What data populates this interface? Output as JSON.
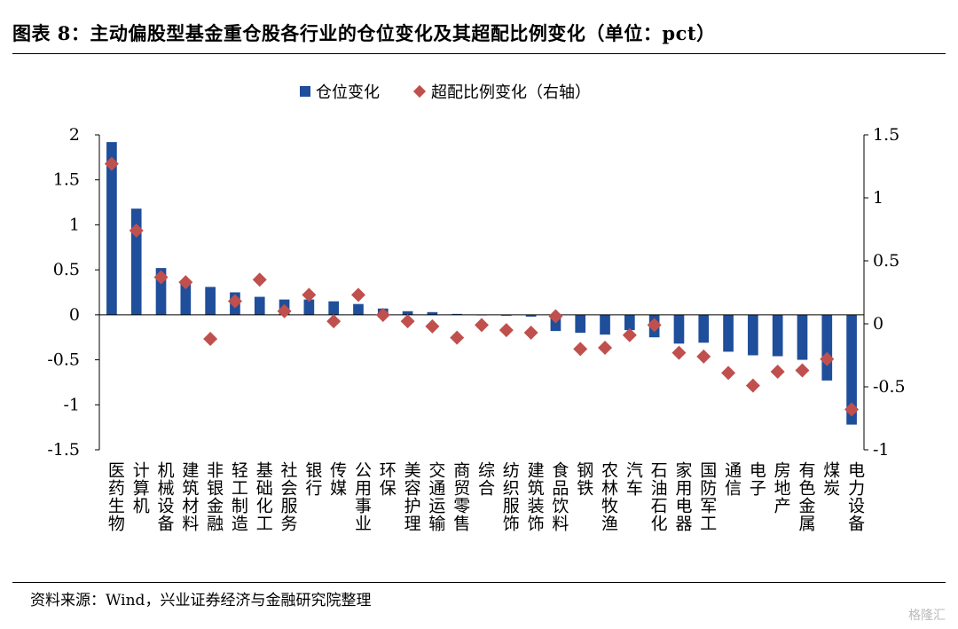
{
  "title": "图表 8：主动偏股型基金重仓股各行业的仓位变化及其超配比例变化（单位：pct）",
  "source": "资料来源：Wind，兴业证券经济与金融研究院整理",
  "watermark": "格隆汇",
  "legend": {
    "bar": "仓位变化",
    "diamond": "超配比例变化（右轴）"
  },
  "colors": {
    "bar": "#1f4e9a",
    "diamond": "#c0504d"
  },
  "chart_data": {
    "type": "bar",
    "categories": [
      "医药生物",
      "计算机",
      "机械设备",
      "建筑材料",
      "非银金融",
      "轻工制造",
      "基础化工",
      "社会服务",
      "银行",
      "传媒",
      "公用事业",
      "环保",
      "美容护理",
      "交通运输",
      "商贸零售",
      "综合",
      "纺织服饰",
      "建筑装饰",
      "食品饮料",
      "钢铁",
      "农林牧渔",
      "汽车",
      "石油石化",
      "家用电器",
      "国防军工",
      "通信",
      "电子",
      "房地产",
      "有色金属",
      "煤炭",
      "电力设备"
    ],
    "series": [
      {
        "name": "仓位变化",
        "axis": "left",
        "values": [
          1.92,
          1.18,
          0.52,
          0.38,
          0.31,
          0.25,
          0.2,
          0.17,
          0.17,
          0.15,
          0.12,
          0.07,
          0.04,
          0.03,
          0.01,
          0.0,
          -0.01,
          -0.02,
          -0.18,
          -0.2,
          -0.22,
          -0.17,
          -0.25,
          -0.32,
          -0.31,
          -0.41,
          -0.45,
          -0.46,
          -0.5,
          -0.73,
          -1.22
        ]
      },
      {
        "name": "超配比例变化（右轴）",
        "axis": "right",
        "marker": "diamond",
        "values": [
          1.27,
          0.74,
          0.37,
          0.33,
          -0.12,
          0.18,
          0.35,
          0.1,
          0.23,
          0.02,
          0.23,
          0.07,
          0.02,
          -0.02,
          -0.11,
          -0.01,
          -0.05,
          -0.07,
          0.06,
          -0.2,
          -0.19,
          -0.09,
          -0.01,
          -0.23,
          -0.26,
          -0.39,
          -0.49,
          -0.38,
          -0.37,
          -0.28,
          -0.68
        ]
      }
    ],
    "yleft": {
      "ylim": [
        -1.5,
        2
      ],
      "ticks": [
        "2",
        "1.5",
        "1",
        "0.5",
        "0",
        "-0.5",
        "-1",
        "-1.5"
      ]
    },
    "yright": {
      "ylim": [
        -1,
        1.5
      ],
      "ticks": [
        "1.5",
        "1",
        "0.5",
        "0",
        "-0.5",
        "-1"
      ]
    },
    "grid": false,
    "legend_position": "top-center"
  }
}
